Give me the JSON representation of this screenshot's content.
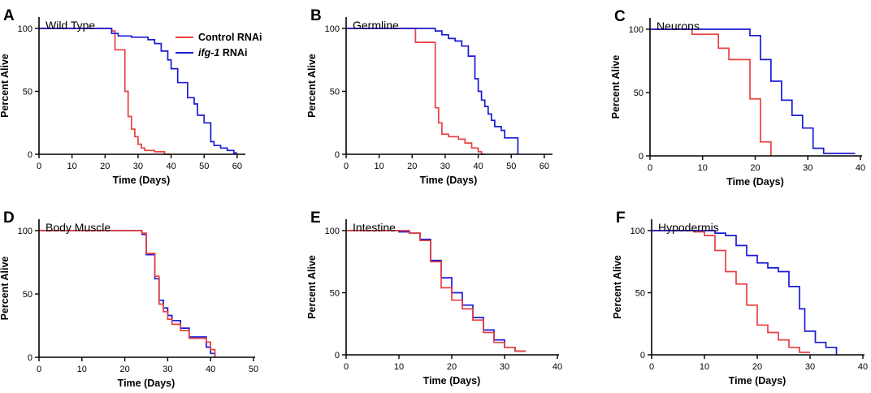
{
  "colors": {
    "control": "#e8403f",
    "ifg1": "#1a1ad6"
  },
  "legend": {
    "control_label": "Control RNAi",
    "ifg1_italic": "ifg-1",
    "ifg1_suffix": " RNAi"
  },
  "chart_data": [
    {
      "type": "line",
      "letter": "A",
      "title": "Wild Type",
      "xlabel": "Time (Days)",
      "ylabel": "Percent Alive",
      "xlim": [
        0,
        62
      ],
      "ylim": [
        0,
        100
      ],
      "xticks": [
        0,
        10,
        20,
        30,
        40,
        50,
        60
      ],
      "yticks": [
        0,
        50,
        100
      ],
      "series": [
        {
          "name": "Control RNAi",
          "color_key": "control",
          "x": [
            0,
            22,
            22,
            23,
            23,
            26,
            26,
            27,
            27,
            28,
            28,
            29,
            29,
            30,
            30,
            31,
            31,
            32,
            32,
            35,
            35,
            38,
            38,
            40
          ],
          "y": [
            100,
            100,
            98,
            98,
            83,
            83,
            50,
            50,
            30,
            30,
            20,
            20,
            14,
            14,
            8,
            8,
            5,
            5,
            3,
            3,
            2,
            2,
            0,
            0
          ]
        },
        {
          "name": "ifg-1 RNAi",
          "color_key": "ifg1",
          "x": [
            0,
            22,
            22,
            24,
            24,
            28,
            28,
            33,
            33,
            35,
            35,
            37,
            37,
            39,
            39,
            40,
            40,
            42,
            42,
            45,
            45,
            47,
            47,
            48,
            48,
            50,
            50,
            52,
            52,
            53,
            53,
            55,
            55,
            57,
            57,
            59,
            59,
            60
          ],
          "y": [
            100,
            100,
            96,
            96,
            94,
            94,
            93,
            93,
            91,
            91,
            88,
            88,
            82,
            82,
            75,
            75,
            68,
            68,
            57,
            57,
            45,
            45,
            40,
            40,
            31,
            31,
            25,
            25,
            10,
            10,
            7,
            7,
            5,
            5,
            3,
            3,
            1,
            1
          ]
        }
      ]
    },
    {
      "type": "line",
      "letter": "B",
      "title": "Germline",
      "xlabel": "Time (Days)",
      "ylabel": "Percent Alive",
      "xlim": [
        0,
        62
      ],
      "ylim": [
        0,
        100
      ],
      "xticks": [
        0,
        10,
        20,
        30,
        40,
        50,
        60
      ],
      "yticks": [
        0,
        50,
        100
      ],
      "series": [
        {
          "name": "Control RNAi",
          "color_key": "control",
          "x": [
            0,
            21,
            21,
            27,
            27,
            28,
            28,
            29,
            29,
            31,
            31,
            34,
            34,
            36,
            36,
            38,
            38,
            40,
            40,
            41,
            41,
            42
          ],
          "y": [
            100,
            100,
            89,
            89,
            37,
            37,
            25,
            25,
            16,
            16,
            14,
            14,
            12,
            12,
            9,
            9,
            5,
            5,
            2,
            2,
            0,
            0
          ]
        },
        {
          "name": "ifg-1 RNAi",
          "color_key": "ifg1",
          "x": [
            0,
            27,
            27,
            29,
            29,
            31,
            31,
            33,
            33,
            35,
            35,
            37,
            37,
            39,
            39,
            40,
            40,
            41,
            41,
            42,
            42,
            43,
            43,
            44,
            44,
            45,
            45,
            47,
            47,
            48,
            48,
            50,
            50,
            52,
            52
          ],
          "y": [
            100,
            100,
            98,
            98,
            95,
            95,
            92,
            92,
            90,
            90,
            86,
            86,
            78,
            78,
            60,
            60,
            50,
            50,
            43,
            43,
            38,
            38,
            32,
            32,
            27,
            27,
            22,
            22,
            19,
            19,
            13,
            13,
            13,
            13,
            0
          ]
        }
      ]
    },
    {
      "type": "line",
      "letter": "C",
      "title": "Neurons",
      "xlabel": "Time (Days)",
      "ylabel": "Percent Alive",
      "xlim": [
        0,
        40
      ],
      "ylim": [
        0,
        100
      ],
      "xticks": [
        0,
        10,
        20,
        30,
        40
      ],
      "yticks": [
        0,
        50,
        100
      ],
      "series": [
        {
          "name": "Control RNAi",
          "color_key": "control",
          "x": [
            0,
            8,
            8,
            13,
            13,
            15,
            15,
            19,
            19,
            21,
            21,
            23,
            23
          ],
          "y": [
            100,
            100,
            96,
            96,
            85,
            85,
            76,
            76,
            45,
            45,
            11,
            11,
            0
          ]
        },
        {
          "name": "ifg-1 RNAi",
          "color_key": "ifg1",
          "x": [
            0,
            19,
            19,
            21,
            21,
            23,
            23,
            25,
            25,
            27,
            27,
            29,
            29,
            31,
            31,
            33,
            33,
            35,
            35,
            39
          ],
          "y": [
            100,
            100,
            95,
            95,
            76,
            76,
            59,
            59,
            44,
            44,
            32,
            32,
            22,
            22,
            6,
            6,
            2,
            2,
            2,
            2
          ]
        }
      ]
    },
    {
      "type": "line",
      "letter": "D",
      "title": "Body Muscle",
      "xlabel": "Time (Days)",
      "ylabel": "Percent Alive",
      "xlim": [
        0,
        50
      ],
      "ylim": [
        0,
        100
      ],
      "xticks": [
        0,
        10,
        20,
        30,
        40,
        50
      ],
      "yticks": [
        0,
        50,
        100
      ],
      "series": [
        {
          "name": "ifg-1 RNAi",
          "color_key": "ifg1",
          "x": [
            0,
            24,
            24,
            25,
            25,
            27,
            27,
            28,
            28,
            29,
            29,
            30,
            30,
            31,
            31,
            33,
            33,
            35,
            35,
            39,
            39,
            40,
            40,
            41,
            41
          ],
          "y": [
            100,
            100,
            97,
            97,
            81,
            81,
            62,
            62,
            45,
            45,
            39,
            39,
            33,
            33,
            29,
            29,
            23,
            23,
            16,
            16,
            8,
            8,
            3,
            3,
            0
          ]
        },
        {
          "name": "Control RNAi",
          "color_key": "control",
          "x": [
            0,
            24,
            24,
            25,
            25,
            27,
            27,
            28,
            28,
            29,
            29,
            30,
            30,
            31,
            31,
            33,
            33,
            35,
            35,
            39,
            39,
            40,
            40,
            41,
            41
          ],
          "y": [
            100,
            100,
            98,
            98,
            82,
            82,
            64,
            64,
            42,
            42,
            36,
            36,
            30,
            30,
            26,
            26,
            21,
            21,
            15,
            15,
            12,
            12,
            6,
            6,
            0
          ]
        }
      ]
    },
    {
      "type": "line",
      "letter": "E",
      "title": "Intestine",
      "xlabel": "Time (Days)",
      "ylabel": "Percent Alive",
      "xlim": [
        0,
        40
      ],
      "ylim": [
        0,
        100
      ],
      "xticks": [
        0,
        10,
        20,
        30,
        40
      ],
      "yticks": [
        0,
        50,
        100
      ],
      "series": [
        {
          "name": "ifg-1 RNAi",
          "color_key": "ifg1",
          "x": [
            0,
            10,
            10,
            12,
            12,
            14,
            14,
            16,
            16,
            18,
            18,
            20,
            20,
            22,
            22,
            24,
            24,
            26,
            26,
            28,
            28,
            30,
            30,
            32,
            32,
            34
          ],
          "y": [
            100,
            100,
            99,
            99,
            98,
            98,
            93,
            93,
            76,
            76,
            62,
            62,
            50,
            50,
            40,
            40,
            30,
            30,
            20,
            20,
            12,
            12,
            6,
            6,
            3,
            3
          ]
        },
        {
          "name": "Control RNAi",
          "color_key": "control",
          "x": [
            0,
            12,
            12,
            14,
            14,
            16,
            16,
            18,
            18,
            20,
            20,
            22,
            22,
            24,
            24,
            26,
            26,
            28,
            28,
            30,
            30,
            32,
            32,
            34
          ],
          "y": [
            100,
            100,
            98,
            98,
            92,
            92,
            75,
            75,
            54,
            54,
            44,
            44,
            37,
            37,
            28,
            28,
            18,
            18,
            10,
            10,
            6,
            6,
            3,
            3
          ]
        }
      ]
    },
    {
      "type": "line",
      "letter": "F",
      "title": "Hypodermis",
      "xlabel": "Time (Days)",
      "ylabel": "Percent Alive",
      "xlim": [
        0,
        40
      ],
      "ylim": [
        0,
        100
      ],
      "xticks": [
        0,
        10,
        20,
        30,
        40
      ],
      "yticks": [
        0,
        50,
        100
      ],
      "series": [
        {
          "name": "Control RNAi",
          "color_key": "control",
          "x": [
            0,
            8,
            8,
            10,
            10,
            12,
            12,
            14,
            14,
            16,
            16,
            18,
            18,
            20,
            20,
            22,
            22,
            24,
            24,
            26,
            26,
            28,
            28,
            30
          ],
          "y": [
            100,
            100,
            99,
            99,
            96,
            96,
            84,
            84,
            67,
            67,
            57,
            57,
            40,
            40,
            24,
            24,
            18,
            18,
            12,
            12,
            6,
            6,
            2,
            2
          ]
        },
        {
          "name": "ifg-1 RNAi",
          "color_key": "ifg1",
          "x": [
            0,
            12,
            12,
            14,
            14,
            16,
            16,
            18,
            18,
            20,
            20,
            22,
            22,
            24,
            24,
            26,
            26,
            28,
            28,
            29,
            29,
            31,
            31,
            33,
            33,
            35,
            35
          ],
          "y": [
            100,
            100,
            98,
            98,
            96,
            96,
            88,
            88,
            80,
            80,
            74,
            74,
            70,
            70,
            67,
            67,
            55,
            55,
            37,
            37,
            19,
            19,
            10,
            10,
            6,
            6,
            0
          ]
        }
      ]
    }
  ]
}
